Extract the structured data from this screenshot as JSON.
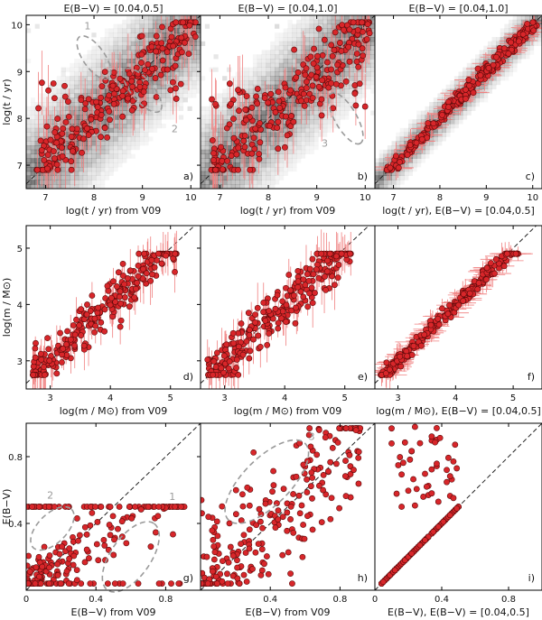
{
  "figure": {
    "description_rows": [
      "log(t/yr)",
      "log(m/Msun)",
      "E(B-V)"
    ]
  },
  "colors": {
    "marker_fill": "#d8262a",
    "marker_edge": "#5a0a0a",
    "errorbar": "#f08080",
    "ellipse": "#9a9a9a",
    "diagonal": "#222222",
    "density": "#000000"
  },
  "chart_data": [
    {
      "id": "a",
      "type": "scatter",
      "tag": "a)",
      "title": "E(B−V) = [0.04,0.5]",
      "xlabel": "log(t / yr) from V09",
      "ylabel": "log(t / yr)",
      "xlim": [
        6.6,
        10.2
      ],
      "ylim": [
        6.5,
        10.2
      ],
      "xticks": [
        "7",
        "8",
        "9",
        "10"
      ],
      "yticks": [
        "7",
        "8",
        "9",
        "10"
      ],
      "annotations": [
        {
          "label": "1"
        },
        {
          "label": "2"
        }
      ],
      "pattern": "age-scatter"
    },
    {
      "id": "b",
      "type": "scatter",
      "tag": "b)",
      "title": "E(B−V) = [0.04,1.0]",
      "xlabel": "log(t / yr) from V09",
      "ylabel": "",
      "xlim": [
        6.6,
        10.2
      ],
      "ylim": [
        6.5,
        10.2
      ],
      "xticks": [
        "7",
        "8",
        "9",
        "10"
      ],
      "yticks": [],
      "annotations": [
        {
          "label": "3"
        }
      ],
      "pattern": "age-scatter-wide"
    },
    {
      "id": "c",
      "type": "scatter",
      "tag": "c)",
      "title": "E(B−V) = [0.04,1.0]",
      "xlabel": "log(t / yr), E(B−V) = [0.04,0.5]",
      "ylabel": "",
      "xlim": [
        6.6,
        10.2
      ],
      "ylim": [
        6.5,
        10.2
      ],
      "xticks": [
        "7",
        "8",
        "9",
        "10"
      ],
      "yticks": [],
      "annotations": [],
      "pattern": "age-tight"
    },
    {
      "id": "d",
      "type": "scatter",
      "tag": "d)",
      "title": "",
      "xlabel": "log(m / M⊙) from V09",
      "ylabel": "log(m / M⊙)",
      "xlim": [
        2.6,
        5.5
      ],
      "ylim": [
        2.5,
        5.4
      ],
      "xticks": [
        "3",
        "4",
        "5"
      ],
      "yticks": [
        "3",
        "4",
        "5"
      ],
      "annotations": [],
      "pattern": "mass-scatter"
    },
    {
      "id": "e",
      "type": "scatter",
      "tag": "e)",
      "title": "",
      "xlabel": "log(m / M⊙) from V09",
      "ylabel": "",
      "xlim": [
        2.6,
        5.5
      ],
      "ylim": [
        2.5,
        5.4
      ],
      "xticks": [
        "3",
        "4",
        "5"
      ],
      "yticks": [],
      "annotations": [],
      "pattern": "mass-scatter"
    },
    {
      "id": "f",
      "type": "scatter",
      "tag": "f)",
      "title": "",
      "xlabel": "log(m / M⊙), E(B−V) = [0.04,0.5]",
      "ylabel": "",
      "xlim": [
        2.6,
        5.5
      ],
      "ylim": [
        2.5,
        5.4
      ],
      "xticks": [
        "3",
        "4",
        "5"
      ],
      "yticks": [],
      "annotations": [],
      "pattern": "mass-tight"
    },
    {
      "id": "g",
      "type": "scatter",
      "tag": "g)",
      "title": "",
      "xlabel": "E(B−V) from V09",
      "ylabel": "E(B−V)",
      "xlim": [
        0,
        1.0
      ],
      "ylim": [
        0,
        1.0
      ],
      "xticks": [
        "0",
        "0.4",
        "0.8"
      ],
      "yticks": [
        "0.4",
        "0.8"
      ],
      "annotations": [
        {
          "label": "1"
        },
        {
          "label": "2"
        }
      ],
      "pattern": "ebv-capped"
    },
    {
      "id": "h",
      "type": "scatter",
      "tag": "h)",
      "title": "",
      "xlabel": "E(B−V) from V09",
      "ylabel": "",
      "xlim": [
        0,
        1.0
      ],
      "ylim": [
        0,
        1.0
      ],
      "xticks": [
        "0.4",
        "0.8"
      ],
      "yticks": [],
      "annotations": [
        {
          "label": "3"
        }
      ],
      "pattern": "ebv-free"
    },
    {
      "id": "i",
      "type": "scatter",
      "tag": "i)",
      "title": "",
      "xlabel": "E(B−V), E(B−V) = [0.04,0.5]",
      "ylabel": "",
      "xlim": [
        0,
        1.0
      ],
      "ylim": [
        0,
        1.0
      ],
      "xticks": [
        "0",
        "0.4",
        "0.8"
      ],
      "yticks": [],
      "annotations": [],
      "pattern": "ebv-identity"
    }
  ]
}
